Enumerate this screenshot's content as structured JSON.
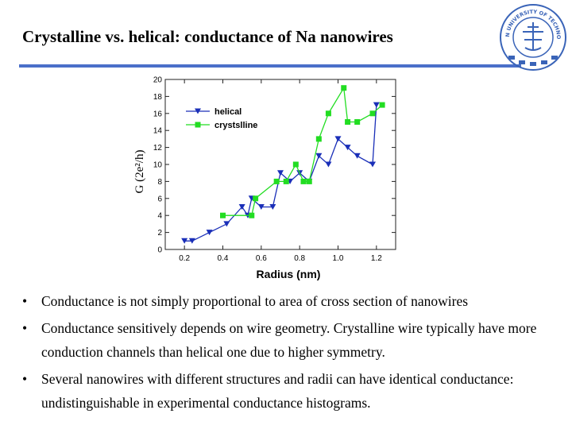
{
  "slide": {
    "title": "Crystalline vs. helical: conductance of Na nanowires",
    "bullets": [
      "Conductance is not simply proportional to area of cross section of nanowires",
      "Conductance sensitively depends on wire geometry. Crystalline wire typically have more conduction channels than helical one due to higher symmetry.",
      "Several nanowires with different structures and radii can have identical conductance: undistinguishable in experimental conductance histograms."
    ],
    "bullet_glyph": "•"
  },
  "colors": {
    "rule": "#4a6fc9",
    "helical": "#1a2fb8",
    "crystalline": "#22dd22",
    "logo": "#3a64b8"
  },
  "logo": {
    "icon": "university-seal-icon",
    "text": "DALIAN UNIVERSITY OF TECHNOLOGY"
  },
  "chart_data": {
    "type": "line",
    "xlabel": "Radius (nm)",
    "ylabel": "G (2e²/h)",
    "xlim": [
      0.1,
      1.3
    ],
    "ylim": [
      0,
      20
    ],
    "x_ticks": [
      "0.2",
      "0.4",
      "0.6",
      "0.8",
      "1.0",
      "1.2"
    ],
    "y_ticks": [
      "0",
      "2",
      "4",
      "6",
      "8",
      "10",
      "12",
      "14",
      "16",
      "18",
      "20"
    ],
    "legend_position": "top-left",
    "series": [
      {
        "name": "helical",
        "marker": "triangle-down",
        "x": [
          0.2,
          0.24,
          0.33,
          0.42,
          0.5,
          0.53,
          0.55,
          0.6,
          0.66,
          0.7,
          0.75,
          0.8,
          0.85,
          0.9,
          0.95,
          1.0,
          1.05,
          1.1,
          1.18,
          1.2
        ],
        "y": [
          1,
          1,
          2,
          3,
          5,
          4,
          6,
          5,
          5,
          9,
          8,
          9,
          8,
          11,
          10,
          13,
          12,
          11,
          10,
          17
        ]
      },
      {
        "name": "crystslline",
        "marker": "square",
        "x": [
          0.4,
          0.55,
          0.57,
          0.68,
          0.73,
          0.78,
          0.82,
          0.85,
          0.9,
          0.95,
          1.03,
          1.05,
          1.1,
          1.18,
          1.23
        ],
        "y": [
          4,
          4,
          6,
          8,
          8,
          10,
          8,
          8,
          13,
          16,
          19,
          15,
          15,
          16,
          17
        ]
      }
    ]
  }
}
